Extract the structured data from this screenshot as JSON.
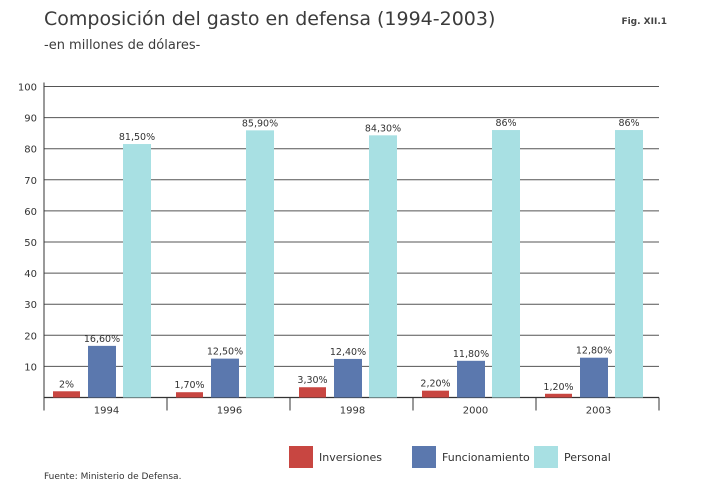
{
  "figure_label": "Fig. XII.1",
  "source": "Fuente: Ministerio de Defensa.",
  "colors": {
    "Inversiones": "#c84641",
    "Funcionamiento": "#5b78ae",
    "Personal": "#a8e0e3",
    "axis": "#333333",
    "grid": "#555555"
  },
  "chart_data": {
    "type": "bar",
    "title": "Composición del gasto en defensa (1994-2003)",
    "subtitle": "-en millones de dólares-",
    "categories": [
      "1994",
      "1996",
      "1998",
      "2000",
      "2003"
    ],
    "series": [
      {
        "name": "Inversiones",
        "values": [
          2,
          1.7,
          3.3,
          2.2,
          1.2
        ],
        "labels": [
          "2%",
          "1,70%",
          "3,30%",
          "2,20%",
          "1,20%"
        ]
      },
      {
        "name": "Funcionamiento",
        "values": [
          16.6,
          12.5,
          12.4,
          11.8,
          12.8
        ],
        "labels": [
          "16,60%",
          "12,50%",
          "12,40%",
          "11,80%",
          "12,80%"
        ]
      },
      {
        "name": "Personal",
        "values": [
          81.5,
          85.9,
          84.3,
          86,
          86
        ],
        "labels": [
          "81,50%",
          "85,90%",
          "84,30%",
          "86%",
          "86%"
        ]
      }
    ],
    "yticks": [
      "",
      "10",
      "20",
      "30",
      "40",
      "50",
      "60",
      "70",
      "80",
      "90",
      "100"
    ],
    "ylim": [
      0,
      100
    ],
    "grid": true,
    "legend_position": "bottom"
  }
}
